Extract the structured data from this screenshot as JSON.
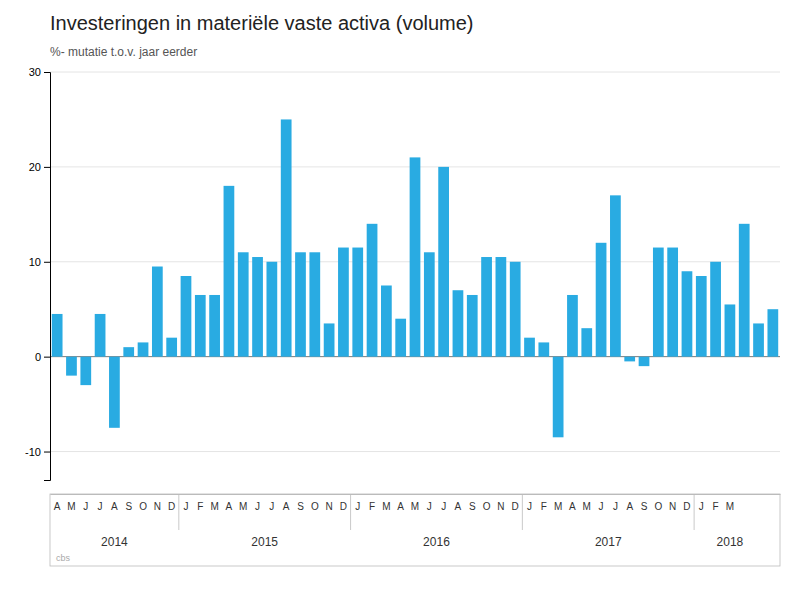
{
  "chart_data": {
    "type": "bar",
    "title": "Investeringen in materiële vaste activa (volume)",
    "subtitle": "%-  mutatie t.o.v. jaar eerder",
    "categories": [
      "A",
      "M",
      "J",
      "J",
      "A",
      "S",
      "O",
      "N",
      "D",
      "J",
      "F",
      "M",
      "A",
      "M",
      "J",
      "J",
      "A",
      "S",
      "O",
      "N",
      "D",
      "J",
      "F",
      "M",
      "A",
      "M",
      "J",
      "J",
      "A",
      "S",
      "O",
      "N",
      "D",
      "J",
      "F",
      "M",
      "A",
      "M",
      "J",
      "J",
      "A",
      "S",
      "O",
      "N",
      "D",
      "J",
      "F",
      "M",
      null,
      null,
      null
    ],
    "values": [
      4.5,
      -2.0,
      -3.0,
      4.5,
      -7.5,
      1.0,
      1.5,
      9.5,
      2.0,
      8.5,
      6.5,
      6.5,
      18.0,
      11.0,
      10.5,
      10.0,
      25.0,
      11.0,
      11.0,
      3.5,
      11.5,
      11.5,
      14.0,
      7.5,
      4.0,
      21.0,
      11.0,
      20.0,
      7.0,
      6.5,
      10.5,
      10.5,
      10.0,
      2.0,
      1.5,
      -8.5,
      6.5,
      3.0,
      12.0,
      17.0,
      -0.5,
      -1.0,
      11.5,
      11.5,
      9.0,
      8.5,
      10.0,
      5.5,
      14.0,
      3.5,
      5.0
    ],
    "color": "#29abe2",
    "ylim": [
      -13,
      30
    ],
    "yticks": [
      -10,
      0,
      10,
      20,
      30
    ],
    "grid": true,
    "category_groups": [
      {
        "label": "2014",
        "center": 4.0
      },
      {
        "label": "2015",
        "center": 14.5
      },
      {
        "label": "2016",
        "center": 26.5
      },
      {
        "label": "2017",
        "center": 38.5
      },
      {
        "label": "2018",
        "center": 47.0
      }
    ],
    "group_separators": [
      8.5,
      20.5,
      32.5,
      44.5
    ],
    "annotations": [
      "cbs"
    ]
  }
}
